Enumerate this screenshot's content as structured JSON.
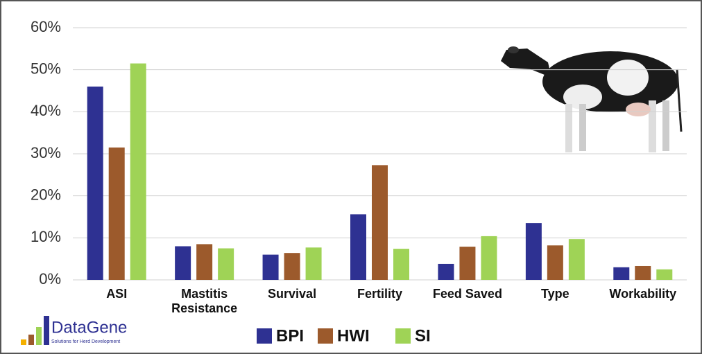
{
  "chart_data": {
    "type": "bar",
    "categories": [
      "ASI",
      "Mastitis Resistance",
      "Survival",
      "Fertility",
      "Feed Saved",
      "Type",
      "Workability"
    ],
    "series": [
      {
        "name": "BPI",
        "color": "#2e3192",
        "values": [
          46,
          8,
          6,
          15.6,
          3.8,
          13.5,
          3
        ]
      },
      {
        "name": "HWI",
        "color": "#9c5a2c",
        "values": [
          31.5,
          8.5,
          6.4,
          27.3,
          7.9,
          8.2,
          3.3
        ]
      },
      {
        "name": "SI",
        "color": "#9fd356",
        "values": [
          51.5,
          7.5,
          7.7,
          7.4,
          10.4,
          9.7,
          2.5
        ]
      }
    ],
    "ylim": [
      0,
      60
    ],
    "yticks": [
      {
        "value": 0,
        "label": "0%"
      },
      {
        "value": 10,
        "label": "10%"
      },
      {
        "value": 20,
        "label": "20%"
      },
      {
        "value": 30,
        "label": "30%"
      },
      {
        "value": 40,
        "label": "40%"
      },
      {
        "value": 50,
        "label": "50%"
      },
      {
        "value": 60,
        "label": "60%"
      }
    ],
    "grid": true
  },
  "logo": {
    "name": "DataGene",
    "tagline": "Solutions for Herd Development"
  }
}
